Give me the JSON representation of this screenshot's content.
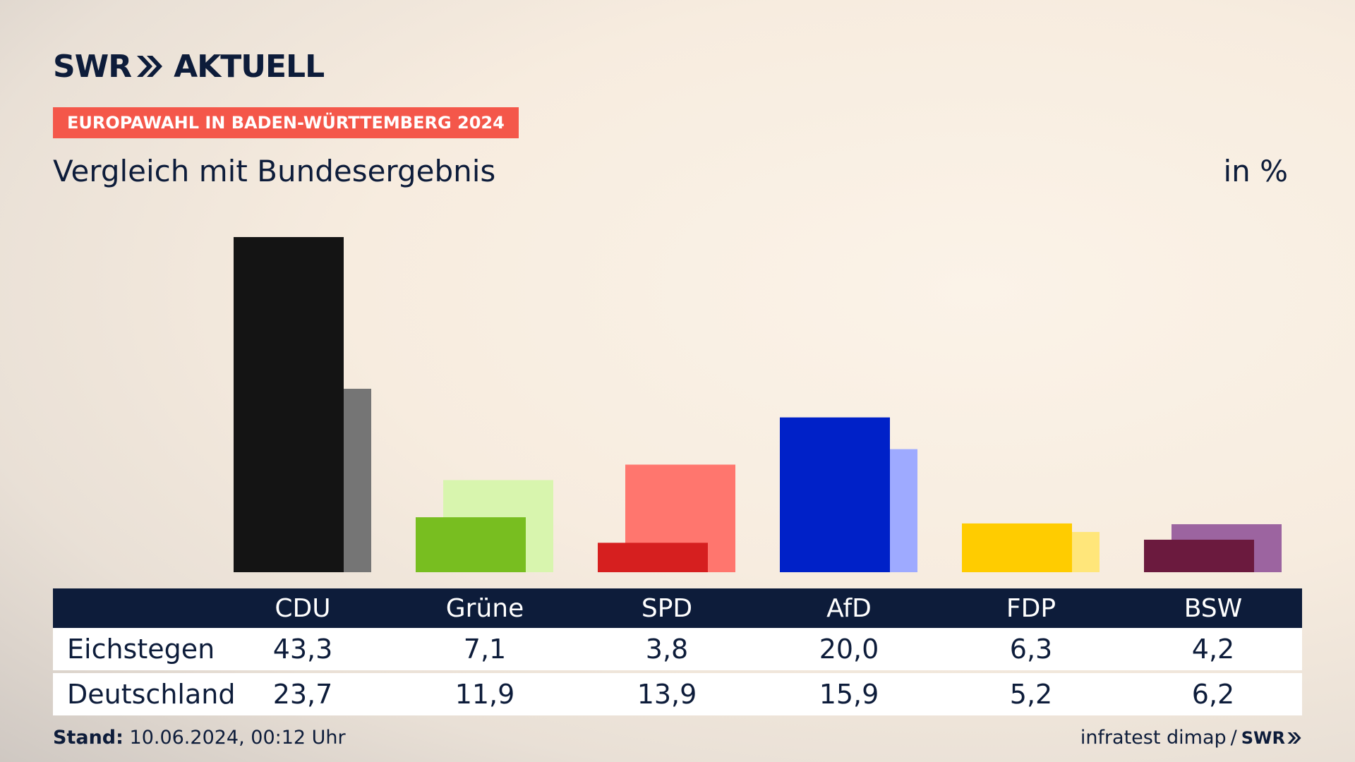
{
  "header": {
    "logo_text": "SWR",
    "logo_suffix": "AKTUELL",
    "kicker": "EUROPAWAHL IN BADEN-WÜRTTEMBERG 2024",
    "title": "Vergleich mit Bundesergebnis",
    "unit": "in %"
  },
  "chart_data": {
    "type": "bar",
    "title": "Vergleich mit Bundesergebnis",
    "categories": [
      "CDU",
      "Grüne",
      "SPD",
      "AfD",
      "FDP",
      "BSW"
    ],
    "series": [
      {
        "name": "Eichstegen",
        "values": [
          43.3,
          7.1,
          3.8,
          20.0,
          6.3,
          4.2
        ]
      },
      {
        "name": "Deutschland",
        "values": [
          23.7,
          11.9,
          13.9,
          15.9,
          5.2,
          6.2
        ]
      }
    ],
    "value_labels": {
      "Eichstegen": [
        "43,3",
        "7,1",
        "3,8",
        "20,0",
        "6,3",
        "4,2"
      ],
      "Deutschland": [
        "23,7",
        "11,9",
        "13,9",
        "15,9",
        "5,2",
        "6,2"
      ]
    },
    "colors_primary": [
      "#141414",
      "#78be20",
      "#d61f1f",
      "#0021c8",
      "#ffcc00",
      "#6b1a3e"
    ],
    "colors_secondary": [
      "#757575",
      "#d8f5ae",
      "#ff766e",
      "#9eaaff",
      "#ffe67a",
      "#9c64a0"
    ],
    "ylim": [
      0,
      45
    ],
    "grid": false,
    "legend": "table-below"
  },
  "footer": {
    "stand_label": "Stand:",
    "stand_value": "10.06.2024, 00:12 Uhr",
    "source": "infratest dimap",
    "separator": "/",
    "brand": "SWR"
  }
}
